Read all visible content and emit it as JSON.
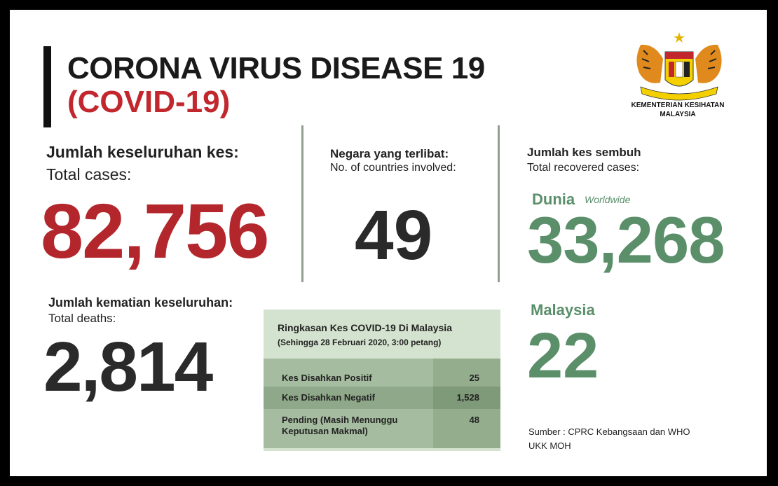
{
  "header": {
    "title": "CORONA VIRUS DISEASE 19",
    "subtitle": "(COVID-19)"
  },
  "ministry": {
    "crest_icon": "malaysia-coat-of-arms-icon",
    "name_line1": "KEMENTERIAN KESIHATAN",
    "name_line2": "MALAYSIA"
  },
  "total_cases": {
    "label_ms": "Jumlah keseluruhan kes:",
    "label_en": "Total cases:",
    "value": "82,756"
  },
  "countries": {
    "label_ms": "Negara yang terlibat:",
    "label_en": "No. of countries involved:",
    "value": "49"
  },
  "recovered": {
    "label_ms": "Jumlah kes sembuh",
    "label_en": "Total recovered cases:",
    "world_label": "Dunia",
    "world_label_en": "Worldwide",
    "world_value": "33,268",
    "malaysia_label": "Malaysia",
    "malaysia_value": "22"
  },
  "deaths": {
    "label_ms": "Jumlah kematian keseluruhan:",
    "label_en": "Total deaths:",
    "value": "2,814"
  },
  "summary": {
    "title": "Ringkasan Kes COVID-19 Di Malaysia",
    "subtitle": "(Sehingga 28 Februari 2020, 3:00 petang)",
    "rows": [
      {
        "label": "Kes Disahkan Positif",
        "value": "25"
      },
      {
        "label": "Kes Disahkan Negatif",
        "value": "1,528"
      },
      {
        "label_line1": "Pending (Masih Menunggu",
        "label_line2": "Keputusan Makmal)",
        "value": "48"
      }
    ]
  },
  "source": {
    "line1": "Sumber : CPRC Kebangsaan dan WHO",
    "line2": "UKK MOH"
  },
  "colors": {
    "red": "#b3262c",
    "green": "#5a8f6a",
    "dark": "#2a2a2a",
    "table_bg": "#d4e3cf"
  }
}
